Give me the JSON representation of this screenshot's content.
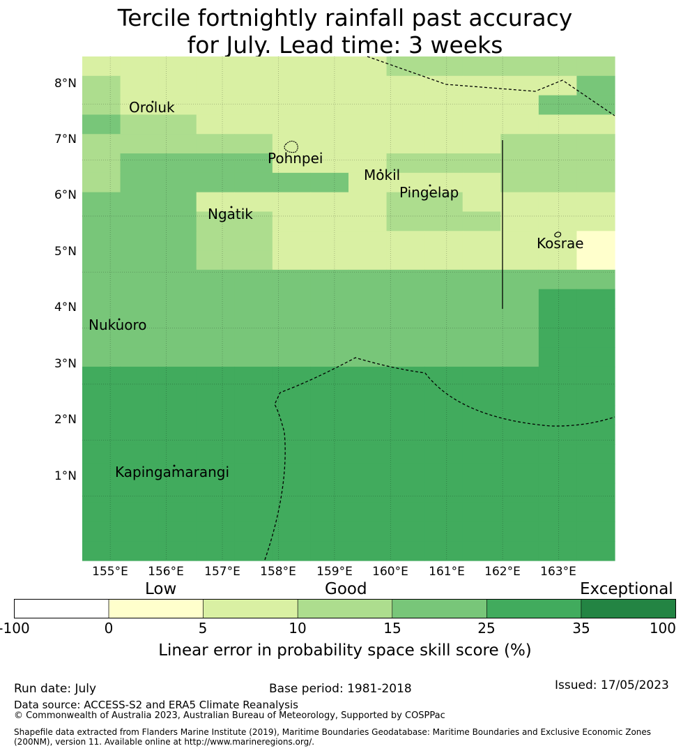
{
  "title_line1": "Tercile fortnightly rainfall past accuracy",
  "title_line2": "for July. Lead time: 3 weeks",
  "map": {
    "lon_range": [
      154.5,
      164.0
    ],
    "lat_range": [
      -0.15,
      8.85
    ],
    "y_tick_labels": [
      "8°N",
      "7°N",
      "6°N",
      "5°N",
      "4°N",
      "3°N",
      "2°N",
      "1°N"
    ],
    "x_tick_labels": [
      "155°E",
      "156°E",
      "157°E",
      "158°E",
      "159°E",
      "160°E",
      "161°E",
      "162°E",
      "163°E"
    ],
    "places": [
      "Oroluk",
      "Pohnpei",
      "Mokil",
      "Pingelap",
      "Ngatik",
      "Kosrae",
      "Nukuoro",
      "Kapingamarangi"
    ],
    "level_colors": [
      "#ffffff",
      "#ffffcc",
      "#d9f0a3",
      "#addd8e",
      "#78c679",
      "#41ab5d",
      "#238443"
    ],
    "grid_levels": [
      "22222222333333",
      "32222222222224",
      "32222222222244",
      "43322222222222",
      "33333222222333",
      "34444222333333",
      "34444442222333",
      "44422222332222",
      "44433222333222",
      "44433222222221",
      "44433222222221",
      "44444444444444",
      "44444444444455",
      "44444444444455",
      "44444444444455",
      "44444444444455",
      "55555555555555",
      "55555555555555",
      "55555555555555",
      "55555555555555",
      "55555555555555",
      "55555555555555",
      "55555555555555",
      "55555555555555",
      "55555555555555",
      "55555555555555"
    ]
  },
  "colorbar": {
    "categories": [
      "Low",
      "Good",
      "Exceptional"
    ],
    "tick_labels": [
      "-100",
      "0",
      "5",
      "10",
      "15",
      "25",
      "35",
      "100"
    ],
    "colors": [
      "#ffffff",
      "#ffffcc",
      "#d9f0a3",
      "#addd8e",
      "#78c679",
      "#41ab5d",
      "#238443"
    ],
    "label": "Linear error in probability space skill score (%)"
  },
  "footer": {
    "run_date": "Run date: July",
    "base_period": "Base period: 1981-2018",
    "issued": "Issued: 17/05/2023",
    "data_source": "Data source: ACCESS-S2 and ERA5 Climate Reanalysis",
    "copyright": "© Commonwealth of Australia 2023, Australian Bureau of Meteorology, Supported by COSPPac",
    "shapefile_line1": "Shapefile data extracted from Flanders Marine Institute (2019), Maritime Boundaries Geodatabase: Maritime Boundaries and Exclusive Economic Zones",
    "shapefile_line2": "(200NM), version 11. Available online at http://www.marineregions.org/."
  }
}
